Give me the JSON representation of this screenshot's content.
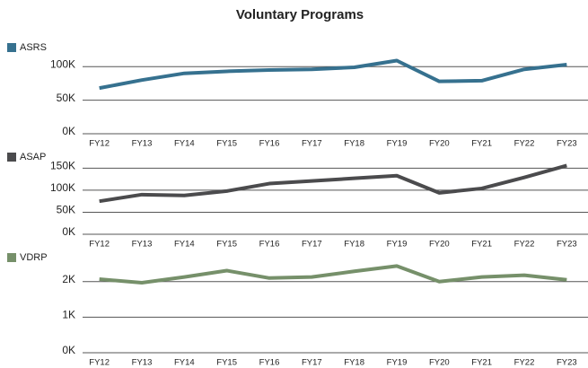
{
  "title": "Voluntary Programs",
  "chart_data": [
    {
      "type": "line",
      "categories": [
        "FY12",
        "FY13",
        "FY14",
        "FY15",
        "FY16",
        "FY17",
        "FY18",
        "FY19",
        "FY20",
        "FY21",
        "FY22",
        "FY23"
      ],
      "series": [
        {
          "name": "ASRS",
          "color": "#36718f",
          "values": [
            68000,
            80000,
            90000,
            93000,
            95000,
            96000,
            99000,
            109000,
            78000,
            79000,
            96000,
            103000
          ]
        }
      ],
      "ylim": [
        0,
        115000
      ],
      "yticks": [
        {
          "value": 0,
          "label": "0K"
        },
        {
          "value": 50000,
          "label": "50K"
        },
        {
          "value": 100000,
          "label": "100K"
        }
      ],
      "grid": true
    },
    {
      "type": "line",
      "categories": [
        "FY12",
        "FY13",
        "FY14",
        "FY15",
        "FY16",
        "FY17",
        "FY18",
        "FY19",
        "FY20",
        "FY21",
        "FY22",
        "FY23"
      ],
      "series": [
        {
          "name": "ASAP",
          "color": "#4b4b4d",
          "values": [
            75000,
            90000,
            88000,
            98000,
            115000,
            121000,
            127000,
            133000,
            94000,
            104000,
            129000,
            156000
          ]
        }
      ],
      "ylim": [
        0,
        165000
      ],
      "yticks": [
        {
          "value": 0,
          "label": "0K"
        },
        {
          "value": 50000,
          "label": "50K"
        },
        {
          "value": 100000,
          "label": "100K"
        },
        {
          "value": 150000,
          "label": "150K"
        }
      ],
      "grid": true
    },
    {
      "type": "line",
      "categories": [
        "FY12",
        "FY13",
        "FY14",
        "FY15",
        "FY16",
        "FY17",
        "FY18",
        "FY19",
        "FY20",
        "FY21",
        "FY22",
        "FY23"
      ],
      "series": [
        {
          "name": "VDRP",
          "color": "#76906a",
          "values": [
            2070,
            1970,
            2130,
            2310,
            2100,
            2130,
            2290,
            2440,
            2000,
            2130,
            2180,
            2050
          ]
        }
      ],
      "ylim": [
        0,
        2600
      ],
      "yticks": [
        {
          "value": 0,
          "label": "0K"
        },
        {
          "value": 1000,
          "label": "1K"
        },
        {
          "value": 2000,
          "label": "2K"
        }
      ],
      "grid": true
    }
  ]
}
